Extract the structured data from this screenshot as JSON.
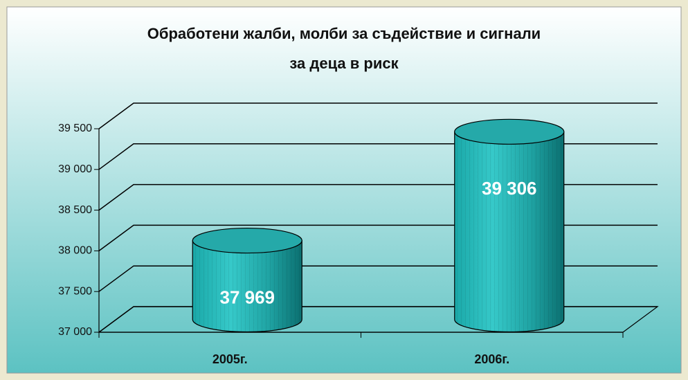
{
  "chart_data": {
    "type": "bar",
    "title": "Обработени жалби, молби за съдействие и сигнали",
    "subtitle": "за деца в риск",
    "categories": [
      "2005г.",
      "2006г."
    ],
    "values": [
      37969,
      39306
    ],
    "value_labels": [
      "37 969",
      "39 306"
    ],
    "color": "#2bbcbc",
    "ylim": [
      37000,
      39500
    ],
    "yticks": [
      {
        "value": 37000,
        "label": "37 000"
      },
      {
        "value": 37500,
        "label": "37 500"
      },
      {
        "value": 38000,
        "label": "38 000"
      },
      {
        "value": 38500,
        "label": "38 500"
      },
      {
        "value": 39000,
        "label": "39 000"
      },
      {
        "value": 39500,
        "label": "39 500"
      }
    ],
    "grid": true
  }
}
